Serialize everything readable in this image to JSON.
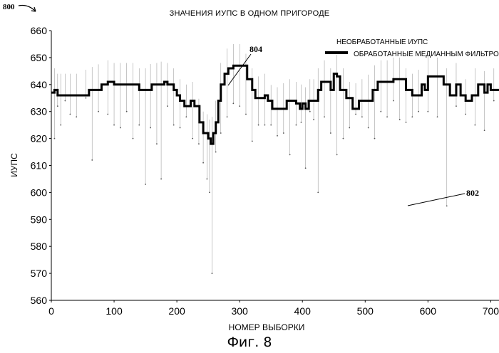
{
  "figure_number": "800",
  "caption": "Фиг. 8",
  "callouts": {
    "filtered": "804",
    "raw": "802"
  },
  "chart_data": {
    "type": "line",
    "title": "ЗНАЧЕНИЯ ИУПС В ОДНОМ ПРИГОРОДЕ",
    "xlabel": "НОМЕР ВЫБОРКИ",
    "ylabel": "ИУПС",
    "xlim": [
      0,
      720
    ],
    "ylim": [
      560,
      660
    ],
    "xticks": [
      "0",
      "100",
      "200",
      "300",
      "400",
      "500",
      "600",
      "700"
    ],
    "yticks": [
      "660",
      "650",
      "640",
      "630",
      "620",
      "610",
      "600",
      "590",
      "580",
      "570",
      "560"
    ],
    "legend": {
      "position": "top-right"
    },
    "series": [
      {
        "name": "НЕОБРАБОТАННЫЕ ИУПС",
        "style": "dots",
        "color": "#555555",
        "x": [
          5,
          10,
          15,
          22,
          30,
          40,
          55,
          65,
          75,
          90,
          100,
          110,
          120,
          130,
          140,
          150,
          158,
          168,
          175,
          185,
          195,
          205,
          215,
          225,
          235,
          242,
          248,
          252,
          256,
          262,
          270,
          280,
          290,
          300,
          310,
          320,
          330,
          340,
          350,
          360,
          370,
          380,
          390,
          398,
          405,
          412,
          418,
          425,
          435,
          445,
          455,
          465,
          475,
          485,
          495,
          505,
          515,
          525,
          535,
          545,
          555,
          565,
          575,
          585,
          600,
          615,
          630,
          645,
          660,
          675,
          690,
          705,
          715
        ],
        "y": [
          620,
          632,
          625,
          634,
          629,
          628,
          635,
          612,
          630,
          629,
          625,
          624,
          630,
          620,
          625,
          603,
          624,
          618,
          605,
          632,
          625,
          624,
          628,
          620,
          618,
          611,
          605,
          600,
          570,
          615,
          622,
          628,
          633,
          632,
          629,
          619,
          625,
          625,
          625,
          621,
          622,
          614,
          625,
          626,
          609,
          630,
          627,
          600,
          628,
          622,
          614,
          620,
          624,
          629,
          628,
          624,
          620,
          630,
          628,
          634,
          627,
          626,
          628,
          630,
          630,
          628,
          595,
          632,
          629,
          625,
          623,
          634,
          628
        ]
      },
      {
        "name": "ОБРАБОТАННЫЕ МЕДИАННЫМ ФИЛЬТРОМ",
        "style": "line",
        "color": "#000000",
        "x": [
          0,
          5,
          10,
          20,
          40,
          60,
          80,
          90,
          100,
          110,
          130,
          140,
          150,
          160,
          170,
          180,
          185,
          195,
          200,
          205,
          212,
          218,
          222,
          228,
          236,
          242,
          246,
          250,
          254,
          258,
          262,
          266,
          270,
          276,
          282,
          290,
          297,
          305,
          312,
          320,
          325,
          330,
          340,
          345,
          352,
          358,
          365,
          375,
          382,
          390,
          396,
          400,
          405,
          410,
          418,
          425,
          430,
          440,
          445,
          450,
          455,
          460,
          465,
          470,
          480,
          490,
          500,
          512,
          520,
          525,
          530,
          538,
          545,
          555,
          565,
          575,
          582,
          590,
          595,
          600,
          610,
          625,
          635,
          645,
          652,
          660,
          670,
          680,
          690,
          695,
          700,
          705,
          715,
          720
        ],
        "y": [
          637,
          638,
          636,
          636,
          636,
          638,
          640,
          641,
          640,
          640,
          640,
          638,
          638,
          640,
          640,
          641,
          640,
          638,
          636,
          634,
          632,
          632,
          634,
          632,
          626,
          622,
          622,
          620,
          618,
          622,
          626,
          634,
          640,
          644,
          646,
          647,
          647,
          647,
          642,
          638,
          635,
          635,
          636,
          634,
          631,
          631,
          631,
          634,
          634,
          633,
          631,
          633,
          631,
          634,
          634,
          638,
          641,
          641,
          638,
          644,
          643,
          638,
          638,
          635,
          631,
          634,
          634,
          638,
          641,
          641,
          641,
          641,
          642,
          642,
          638,
          636,
          636,
          640,
          638,
          643,
          643,
          640,
          636,
          640,
          636,
          634,
          636,
          640,
          637,
          640,
          638,
          638,
          637,
          637
        ]
      }
    ]
  }
}
